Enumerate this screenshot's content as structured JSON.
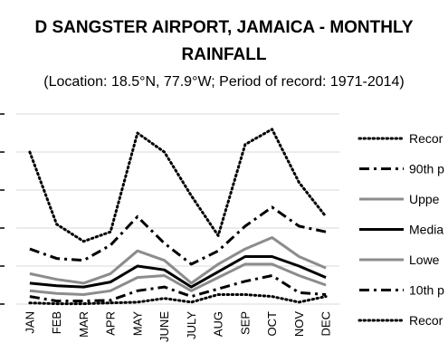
{
  "chart_data": {
    "type": "line",
    "title": "D SANGSTER AIRPORT, JAMAICA - MONTHLY RAINFALL",
    "title_line1": "D SANGSTER AIRPORT, JAMAICA - MONTHLY",
    "title_line2": "RAINFALL",
    "subtitle": "(Location: 18.5°N, 77.9°W; Period of record: 1971-2014)",
    "categories": [
      "JAN",
      "FEB",
      "MAR",
      "APR",
      "MAY",
      "JUNE",
      "JULY",
      "AUG",
      "SEP",
      "OCT",
      "NOV",
      "DEC"
    ],
    "ylim": [
      0,
      500
    ],
    "grid": true,
    "legend": "right",
    "series": [
      {
        "name": "Recor",
        "style": "dotted",
        "color": "#000000",
        "values": [
          400,
          210,
          165,
          190,
          450,
          400,
          285,
          180,
          420,
          460,
          320,
          230
        ]
      },
      {
        "name": "90th p",
        "style": "dashdot",
        "color": "#000000",
        "values": [
          145,
          120,
          115,
          155,
          230,
          160,
          105,
          140,
          205,
          255,
          205,
          190
        ]
      },
      {
        "name": "Uppe",
        "style": "solid",
        "color": "#8c8c8c",
        "values": [
          80,
          65,
          55,
          80,
          140,
          115,
          55,
          105,
          145,
          175,
          125,
          95
        ]
      },
      {
        "name": "Media",
        "style": "solid",
        "color": "#000000",
        "values": [
          55,
          48,
          45,
          58,
          100,
          90,
          45,
          85,
          125,
          125,
          100,
          70
        ]
      },
      {
        "name": "Lowe",
        "style": "solid",
        "color": "#8c8c8c",
        "values": [
          35,
          28,
          25,
          35,
          70,
          75,
          35,
          70,
          105,
          105,
          75,
          50
        ]
      },
      {
        "name": "10th p",
        "style": "dashdot",
        "color": "#000000",
        "values": [
          20,
          8,
          8,
          10,
          35,
          45,
          20,
          40,
          60,
          75,
          30,
          25
        ]
      },
      {
        "name": "Recor",
        "style": "dotted",
        "color": "#000000",
        "values": [
          3,
          1,
          1,
          3,
          5,
          15,
          5,
          25,
          25,
          20,
          5,
          20
        ]
      }
    ]
  }
}
